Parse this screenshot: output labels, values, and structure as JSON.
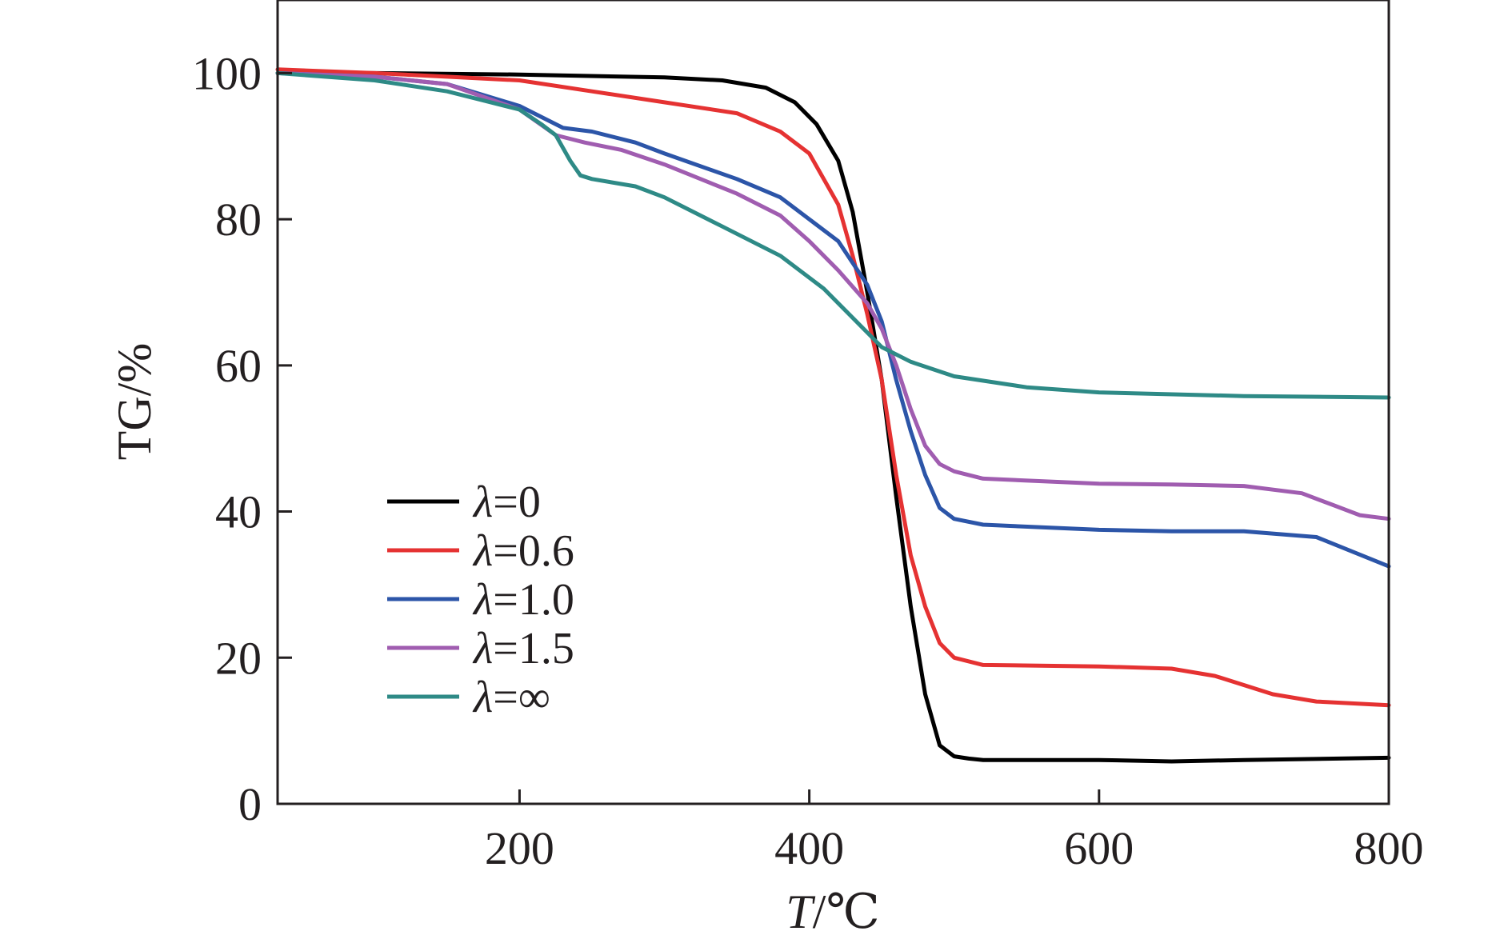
{
  "chart_data": {
    "type": "line",
    "title": "",
    "xlabel_italic": "T",
    "xlabel_rest": "/℃",
    "ylabel": "TG/%",
    "xlim": [
      33,
      800
    ],
    "ylim": [
      0,
      110
    ],
    "xticks": [
      "200",
      "400",
      "600",
      "800"
    ],
    "xtick_values": [
      200,
      400,
      600,
      800
    ],
    "yticks": [
      "0",
      "20",
      "40",
      "60",
      "80",
      "100"
    ],
    "ytick_values": [
      0,
      20,
      40,
      60,
      80,
      100
    ],
    "grid": false,
    "legend_position": "lower-left",
    "legend_symbol": "λ",
    "series": [
      {
        "name": "=0",
        "color": "#000000",
        "x": [
          33,
          100,
          200,
          300,
          340,
          370,
          390,
          405,
          420,
          430,
          440,
          450,
          460,
          470,
          480,
          490,
          500,
          510,
          520,
          600,
          650,
          700,
          800
        ],
        "y": [
          100,
          100,
          99.8,
          99.4,
          99,
          98,
          96,
          93,
          88,
          81,
          70,
          58,
          42,
          27,
          15,
          8,
          6.5,
          6.2,
          6,
          6,
          5.8,
          6,
          6.3
        ]
      },
      {
        "name": "=0.6",
        "color": "#e53232",
        "x": [
          33,
          100,
          150,
          200,
          250,
          300,
          350,
          380,
          400,
          420,
          430,
          440,
          450,
          460,
          470,
          480,
          490,
          500,
          520,
          600,
          650,
          680,
          720,
          750,
          800
        ],
        "y": [
          100.5,
          100,
          99.5,
          99,
          97.5,
          96,
          94.5,
          92,
          89,
          82,
          75,
          67,
          58,
          45,
          34,
          27,
          22,
          20,
          19,
          18.8,
          18.5,
          17.5,
          15,
          14,
          13.5
        ]
      },
      {
        "name": "=1.0",
        "color": "#2c55a8",
        "x": [
          33,
          100,
          150,
          200,
          230,
          250,
          280,
          300,
          350,
          380,
          400,
          420,
          440,
          450,
          460,
          470,
          480,
          490,
          500,
          520,
          600,
          650,
          700,
          750,
          800
        ],
        "y": [
          100,
          99.5,
          98.5,
          95.5,
          92.5,
          92,
          90.5,
          89,
          85.5,
          83,
          80,
          77,
          71,
          66,
          58,
          51,
          45,
          40.5,
          39,
          38.2,
          37.5,
          37.3,
          37.3,
          36.5,
          32.5
        ]
      },
      {
        "name": "=1.5",
        "color": "#a05db0",
        "x": [
          33,
          100,
          150,
          200,
          225,
          245,
          270,
          300,
          350,
          380,
          400,
          420,
          440,
          450,
          460,
          470,
          480,
          490,
          500,
          520,
          600,
          650,
          700,
          740,
          760,
          780,
          800
        ],
        "y": [
          100,
          99.5,
          98.5,
          95,
          91.5,
          90.5,
          89.5,
          87.5,
          83.5,
          80.5,
          77,
          73,
          68.5,
          65,
          60,
          54,
          49,
          46.5,
          45.5,
          44.5,
          43.8,
          43.7,
          43.5,
          42.5,
          41,
          39.5,
          39
        ]
      },
      {
        "name": "=∞",
        "color": "#2e8a86",
        "x": [
          33,
          100,
          150,
          200,
          215,
          225,
          235,
          242,
          250,
          280,
          300,
          340,
          380,
          410,
          430,
          450,
          470,
          500,
          550,
          600,
          700,
          800
        ],
        "y": [
          100,
          99,
          97.5,
          95,
          93,
          91.5,
          88,
          86,
          85.5,
          84.5,
          83,
          79,
          75,
          70.5,
          66.5,
          62.5,
          60.5,
          58.5,
          57,
          56.3,
          55.8,
          55.6
        ]
      }
    ]
  }
}
